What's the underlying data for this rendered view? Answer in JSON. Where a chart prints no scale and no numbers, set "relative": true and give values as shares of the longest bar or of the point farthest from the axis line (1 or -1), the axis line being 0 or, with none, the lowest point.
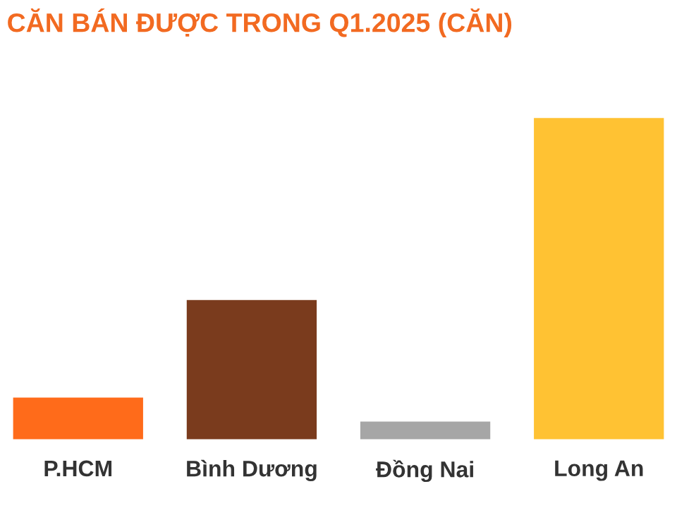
{
  "chart_data": {
    "type": "bar",
    "title": "CĂN BÁN ĐƯỢC TRONG Q1.2025 (CĂN)",
    "categories": [
      "P.HCM",
      "Bình Dương",
      "Đồng Nai",
      "Long An"
    ],
    "values": [
      0.135,
      0.437,
      0.061,
      1
    ],
    "colors": [
      "#ff6b1a",
      "#7a3b1d",
      "#a6a6a6",
      "#ffc233"
    ],
    "relative": true
  }
}
